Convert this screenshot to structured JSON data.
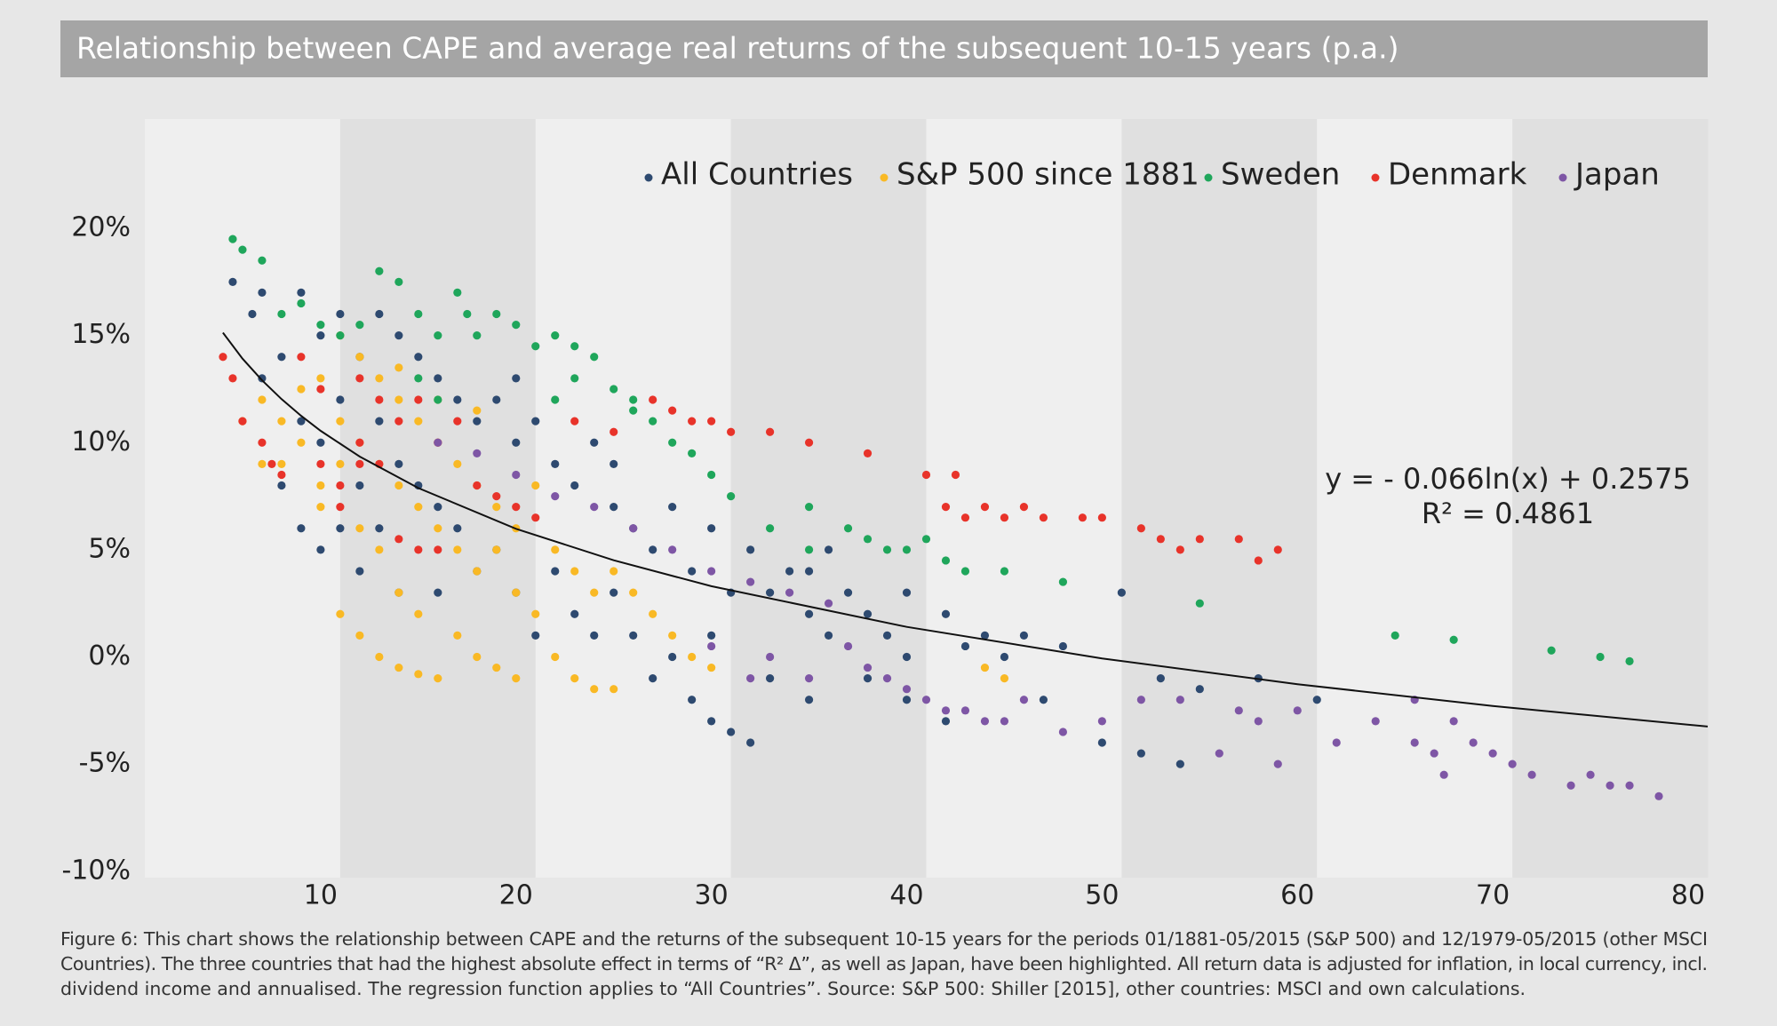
{
  "chart_data": {
    "type": "scatter",
    "title": "Relationship between CAPE and average real returns of the subsequent 10-15 years (p.a.)",
    "xlim": [
      1,
      81
    ],
    "ylim": [
      -10.3,
      25.1
    ],
    "xticks": [
      10,
      20,
      30,
      40,
      50,
      60,
      70,
      80
    ],
    "yticks": [
      {
        "value": -10,
        "label": "-10%"
      },
      {
        "value": -5,
        "label": "-5%"
      },
      {
        "value": 0,
        "label": "0%"
      },
      {
        "value": 5,
        "label": "5%"
      },
      {
        "value": 10,
        "label": "10%"
      },
      {
        "value": 15,
        "label": "15%"
      },
      {
        "value": 20,
        "label": "20%"
      }
    ],
    "legend": "top",
    "series": [
      {
        "name": "All Countries",
        "color": "#2e4a70",
        "x": [
          5.5,
          6.5,
          7,
          7,
          8,
          8,
          9,
          9,
          9,
          10,
          10,
          10,
          11,
          11,
          11,
          12,
          12,
          12,
          13,
          13,
          13,
          14,
          14,
          14,
          15,
          15,
          16,
          16,
          16,
          17,
          17,
          18,
          18,
          19,
          19,
          20,
          20,
          21,
          21,
          22,
          22,
          23,
          23,
          24,
          24,
          25,
          25,
          26,
          26,
          27,
          27,
          28,
          28,
          29,
          29,
          30,
          30,
          30,
          31,
          31,
          32,
          32,
          33,
          33,
          34,
          35,
          35,
          36,
          36,
          37,
          38,
          38,
          39,
          40,
          40,
          42,
          42,
          44,
          45,
          46,
          47,
          48,
          50,
          51,
          52,
          53,
          54,
          55,
          58,
          61,
          20,
          25,
          35,
          40,
          43
        ],
        "values": [
          17.5,
          16,
          17,
          13,
          14,
          8,
          17,
          11,
          6,
          15,
          10,
          5,
          16,
          12,
          6,
          14,
          8,
          4,
          16,
          11,
          6,
          15,
          9,
          3,
          14,
          8,
          13,
          7,
          3,
          12,
          6,
          11,
          4,
          12,
          5,
          10,
          3,
          11,
          1,
          9,
          4,
          8,
          2,
          10,
          1,
          7,
          3,
          6,
          1,
          5,
          -1,
          7,
          0,
          4,
          -2,
          6,
          1,
          -3,
          3,
          -3.5,
          5,
          -4,
          3,
          -1,
          4,
          2,
          -2,
          5,
          1,
          3,
          2,
          -1,
          1,
          0,
          -2,
          2,
          -3,
          1,
          0,
          1,
          -2,
          0.5,
          -4,
          3,
          -4.5,
          -1,
          -5,
          -1.5,
          -1,
          -2,
          13,
          9,
          4,
          3,
          0.5
        ]
      },
      {
        "name": "S&P 500 since 1881",
        "color": "#f9b925",
        "x": [
          6,
          7,
          7,
          8,
          8,
          9,
          9,
          10,
          10,
          10,
          11,
          11,
          11,
          11,
          12,
          12,
          12,
          12,
          13,
          13,
          13,
          13,
          14,
          14,
          14,
          14,
          15,
          15,
          15,
          15,
          16,
          16,
          16,
          17,
          17,
          17,
          18,
          18,
          18,
          19,
          19,
          19,
          20,
          20,
          20,
          21,
          21,
          22,
          22,
          23,
          23,
          24,
          24,
          25,
          25,
          26,
          27,
          28,
          29,
          30,
          44,
          45,
          14,
          16,
          18
        ],
        "values": [
          11,
          12,
          9,
          11,
          9,
          12.5,
          10,
          13,
          8,
          7,
          15,
          11,
          9,
          2,
          14,
          10,
          6,
          1,
          13,
          9,
          5,
          0,
          12,
          8,
          3,
          -0.5,
          11,
          7,
          2,
          -0.8,
          10,
          6,
          -1,
          9,
          5,
          1,
          8,
          4,
          0,
          7,
          5,
          -0.5,
          6,
          3,
          -1,
          8,
          2,
          5,
          0,
          4,
          -1,
          3,
          -1.5,
          4,
          -1.5,
          3,
          2,
          1,
          0,
          -0.5,
          -0.5,
          -1,
          13.5,
          12,
          11.5
        ]
      },
      {
        "name": "Sweden",
        "color": "#1fa65b",
        "x": [
          5.5,
          6,
          7,
          8,
          9,
          10,
          11,
          12,
          13,
          14,
          15,
          16,
          17,
          17.5,
          18,
          19,
          20,
          21,
          22,
          23,
          24,
          25,
          26,
          27,
          28,
          29,
          22,
          23,
          26,
          30,
          31,
          35,
          37,
          38,
          39,
          40,
          41,
          42,
          43,
          45,
          48,
          55,
          65,
          68,
          73,
          75.5,
          77,
          35,
          33,
          15,
          16
        ],
        "values": [
          19.5,
          19,
          18.5,
          16,
          16.5,
          15.5,
          15,
          15.5,
          18,
          17.5,
          16,
          15,
          17,
          16,
          15,
          16,
          15.5,
          14.5,
          15,
          14.5,
          14,
          12.5,
          11.5,
          11,
          10,
          9.5,
          12,
          13,
          12,
          8.5,
          7.5,
          7,
          6,
          5.5,
          5,
          5,
          5.5,
          4.5,
          4,
          4,
          3.5,
          2.5,
          1,
          0.8,
          0.3,
          0,
          -0.2,
          5,
          6,
          13,
          12
        ]
      },
      {
        "name": "Denmark",
        "color": "#e8332a",
        "x": [
          5,
          5.5,
          6,
          7,
          7.5,
          8,
          9,
          10,
          10,
          11,
          11,
          12,
          12,
          13,
          14,
          15,
          16,
          17,
          18,
          19,
          20,
          21,
          14,
          15,
          16,
          23,
          25,
          27,
          28,
          29,
          30,
          31,
          33,
          35,
          38,
          41,
          42,
          42.5,
          43,
          44,
          45,
          46,
          47,
          49,
          50,
          52,
          53,
          54,
          55,
          57,
          58,
          59,
          12,
          13
        ],
        "values": [
          14,
          13,
          11,
          10,
          9,
          8.5,
          14,
          12.5,
          9,
          8,
          7,
          13,
          10,
          9,
          11,
          12,
          10,
          11,
          8,
          7.5,
          7,
          6.5,
          5.5,
          5,
          5,
          11,
          10.5,
          12,
          11.5,
          11,
          11,
          10.5,
          10.5,
          10,
          9.5,
          8.5,
          7,
          8.5,
          6.5,
          7,
          6.5,
          7,
          6.5,
          6.5,
          6.5,
          6,
          5.5,
          5,
          5.5,
          5.5,
          4.5,
          5,
          9,
          12
        ]
      },
      {
        "name": "Japan",
        "color": "#7e56a5",
        "x": [
          16,
          18,
          20,
          22,
          24,
          26,
          28,
          30,
          32,
          34,
          36,
          37,
          38,
          39,
          40,
          41,
          42,
          43,
          44,
          45,
          46,
          48,
          50,
          52,
          54,
          56,
          57,
          58,
          59,
          60,
          62,
          64,
          66,
          66,
          67,
          68,
          69,
          70,
          71,
          72,
          74,
          75,
          76,
          77,
          78.5,
          33,
          35,
          30,
          32,
          67.5
        ],
        "values": [
          10,
          9.5,
          8.5,
          7.5,
          7,
          6,
          5,
          4,
          3.5,
          3,
          2.5,
          0.5,
          -0.5,
          -1,
          -1.5,
          -2,
          -2.5,
          -2.5,
          -3,
          -3,
          -2,
          -3.5,
          -3,
          -2,
          -2,
          -4.5,
          -2.5,
          -3,
          -5,
          -2.5,
          -4,
          -3,
          -2,
          -4,
          -4.5,
          -3,
          -4,
          -4.5,
          -5,
          -5.5,
          -6,
          -5.5,
          -6,
          -6,
          -6.5,
          0,
          -1,
          0.5,
          -1,
          -5.5
        ]
      }
    ],
    "trendline": {
      "color": "#111111",
      "x": [
        5,
        6,
        7,
        8,
        9,
        10,
        12,
        15,
        20,
        25,
        30,
        40,
        50,
        60,
        70,
        81
      ],
      "values": [
        15.13,
        13.92,
        12.91,
        12.03,
        11.25,
        10.55,
        9.35,
        7.88,
        5.98,
        4.51,
        3.3,
        1.4,
        -0.07,
        -1.27,
        -2.29,
        -3.25
      ]
    },
    "annotations": [
      "y = - 0.066ln(x) + 0.2575",
      "R² = 0.4861"
    ],
    "caption_lines": [
      "Figure 6: This chart shows the relationship between CAPE and the returns of the subsequent 10-15 years for the periods 01/1881-05/2015 (S&P 500) and 12/1979-05/2015 (other MSCI",
      "Countries). The three countries that had the highest absolute effect in terms of “R² Δ”, as well as Japan, have been highlighted. All return data is adjusted for inflation, in local currency, incl.",
      "dividend income and annualised. The regression function applies to “All Countries”. Source: S&P 500: Shiller [2015], other countries: MSCI and own calculations."
    ]
  }
}
